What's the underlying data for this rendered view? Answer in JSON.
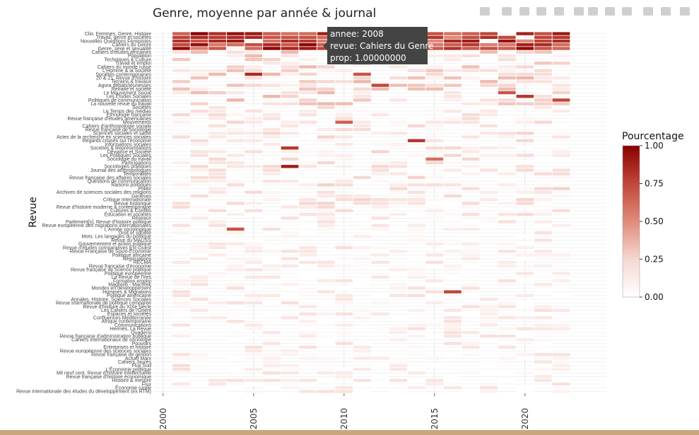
{
  "chart_data": {
    "type": "heatmap",
    "title": "Genre, moyenne par année & journal",
    "xlabel": "",
    "ylabel": "Revue",
    "x_tick_labels": [
      "2000",
      "2005",
      "2010",
      "2015",
      "2020"
    ],
    "x_ticks": [
      2000,
      2005,
      2010,
      2015,
      2020
    ],
    "xlim": [
      1999.5,
      2024.5
    ],
    "years": [
      2001,
      2002,
      2003,
      2004,
      2005,
      2006,
      2007,
      2008,
      2009,
      2010,
      2011,
      2012,
      2013,
      2014,
      2015,
      2016,
      2017,
      2018,
      2019,
      2020,
      2021,
      2022
    ],
    "legend": {
      "title": "Pourcentage",
      "ticks": [
        "1.00",
        "0.75",
        "0.50",
        "0.25",
        "0.00"
      ],
      "tick_values": [
        1.0,
        0.75,
        0.5,
        0.25,
        0.0
      ],
      "color_low": "#ffffff",
      "color_high": "#8b0000"
    },
    "grid": true,
    "legend_position": "right",
    "journals": [
      "Clio. Femmes, Genre, Histoire",
      "Travail, genre et sociétés",
      "Nouvelles Questions Féministes",
      "Cahiers du Genre",
      "Genre, sexe et sexualité",
      "Cahiers d'études africaines",
      "Population",
      "Techniques & Culture",
      "Travail et emploi",
      "Cahiers du monde russe",
      "L'Homme & la Société",
      "Sociétés contemporaines",
      "20 & 21. Revue d'histoire",
      "Terrains & travaux",
      "Agora débats/jeunesses",
      "Retraite et société",
      "Le Mouvement Social",
      "Les Études Sociales",
      "Politiques de communication",
      "La nouvelle revue du travail",
      "Sociétés",
      "Le Temps des médias",
      "Ethnologie française",
      "Revue française d'études américaines",
      "Mouvements",
      "Cahiers d'anthropologie sociale",
      "Revue française de sociologie",
      "Sciences sociales et santé",
      "Actes de la recherche en sciences sociales",
      "Regards croisés sur l'économie",
      "Informations sociales",
      "Sociétés & Représentations",
      "Déviance et Société",
      "Les Politiques Sociales",
      "Sociologie du travail",
      "Participations",
      "Sociologies pratiques",
      "Journal des anthropologues",
      "Temporalités",
      "Revue française des affaires sociales",
      "Questions de communication",
      "Raisons politiques",
      "Politix",
      "Archives de sciences sociales des religions",
      "Genèses",
      "Critique internationale",
      "Revue historique",
      "Revue d'histoire moderne & contemporaine",
      "Cultures & Conflits",
      "Éducation et sociétés",
      "Réseaux",
      "Parlement[s], Revue d'histoire politique",
      "Revue européenne des migrations internationales",
      "L'Année sociologique",
      "Droit et société",
      "Mots. Les langages du politique",
      "Revue du MAUSS",
      "Gouvernement et action publique",
      "Revue d'études comparatives Est-Ouest",
      "Revue Française de Socio-Économie",
      "Politique africaine",
      "Négociations",
      "RECMA",
      "Revue française d'économie",
      "Revue française de science politique",
      "Politique européenne",
      "La Revue de l'Ires",
      "Formation emploi",
      "Maghreb - Machrek",
      "Mondes en développement",
      "Hommes & Migrations",
      "Politique américaine",
      "Annales. Histoire, Sciences Sociales",
      "Revue internationale de politique comparée",
      "Revue d'histoire du XIXe siècle",
      "Les Cahiers de l'Orient",
      "Espaces et sociétés",
      "Confluences Méditerranée",
      "Afrique contemporaine",
      "Communications",
      "Hermès, La Revue",
      "Quaderni",
      "Revue française d'administration publique",
      "Cahiers internationaux de sociologie",
      "Pouvoirs",
      "Entreprises et histoire",
      "Revue européenne des sciences sociales",
      "Revue française de gestion",
      "Actuel Marx",
      "Cahiers Jaurès",
      "Flux Sud",
      "L'Économie politique",
      "Mil neuf cent. Revue d'histoire intellectuelle",
      "Revue française d'histoire économique",
      "Histoire & mesure",
      "Flux",
      "Économie rurale",
      "Revue internationale des études du développement (ex RTM)"
    ],
    "highlight_cells": [
      {
        "journal": "Cahiers du Genre",
        "year": 2008,
        "value": 1.0
      },
      {
        "journal": "Sociologies pratiques",
        "year": 2007,
        "value": 0.9
      },
      {
        "journal": "Sociétés & Représentations",
        "year": 2007,
        "value": 0.8
      },
      {
        "journal": "Sociétés contemporaines",
        "year": 2005,
        "value": 0.85
      },
      {
        "journal": "L'Année sociologique",
        "year": 2004,
        "value": 0.7
      },
      {
        "journal": "Hommes & Migrations",
        "year": 2016,
        "value": 0.75
      },
      {
        "journal": "Regards croisés sur l'économie",
        "year": 2014,
        "value": 0.8
      },
      {
        "journal": "Sociologie du travail",
        "year": 2015,
        "value": 0.6
      },
      {
        "journal": "Les Études Sociales",
        "year": 2020,
        "value": 0.8
      },
      {
        "journal": "Le Mouvement Social",
        "year": 2019,
        "value": 0.7
      },
      {
        "journal": "Politiques de communication",
        "year": 2022,
        "value": 0.75
      },
      {
        "journal": "Agora débats/jeunesses",
        "year": 2012,
        "value": 0.75
      },
      {
        "journal": "Sociétés contemporaines",
        "year": 2011,
        "value": 0.7
      },
      {
        "journal": "Mouvements",
        "year": 2010,
        "value": 0.65
      }
    ]
  },
  "tooltip": {
    "lines": [
      "annee: 2008",
      "revue: Cahiers du Genre",
      "prop: 1.00000000"
    ]
  },
  "modebar": {
    "icons": [
      "camera-icon",
      "zoom-icon",
      "pan-icon",
      "box-select-icon",
      "lasso-icon",
      "zoom-in-icon",
      "zoom-out-icon",
      "autoscale-icon",
      "reset-icon",
      "hover-closest-icon",
      "hover-compare-icon",
      "plotly-logo-icon"
    ]
  },
  "colors": {
    "bottom_bar": "#c8a77a",
    "tooltip_bg": "#444444"
  }
}
